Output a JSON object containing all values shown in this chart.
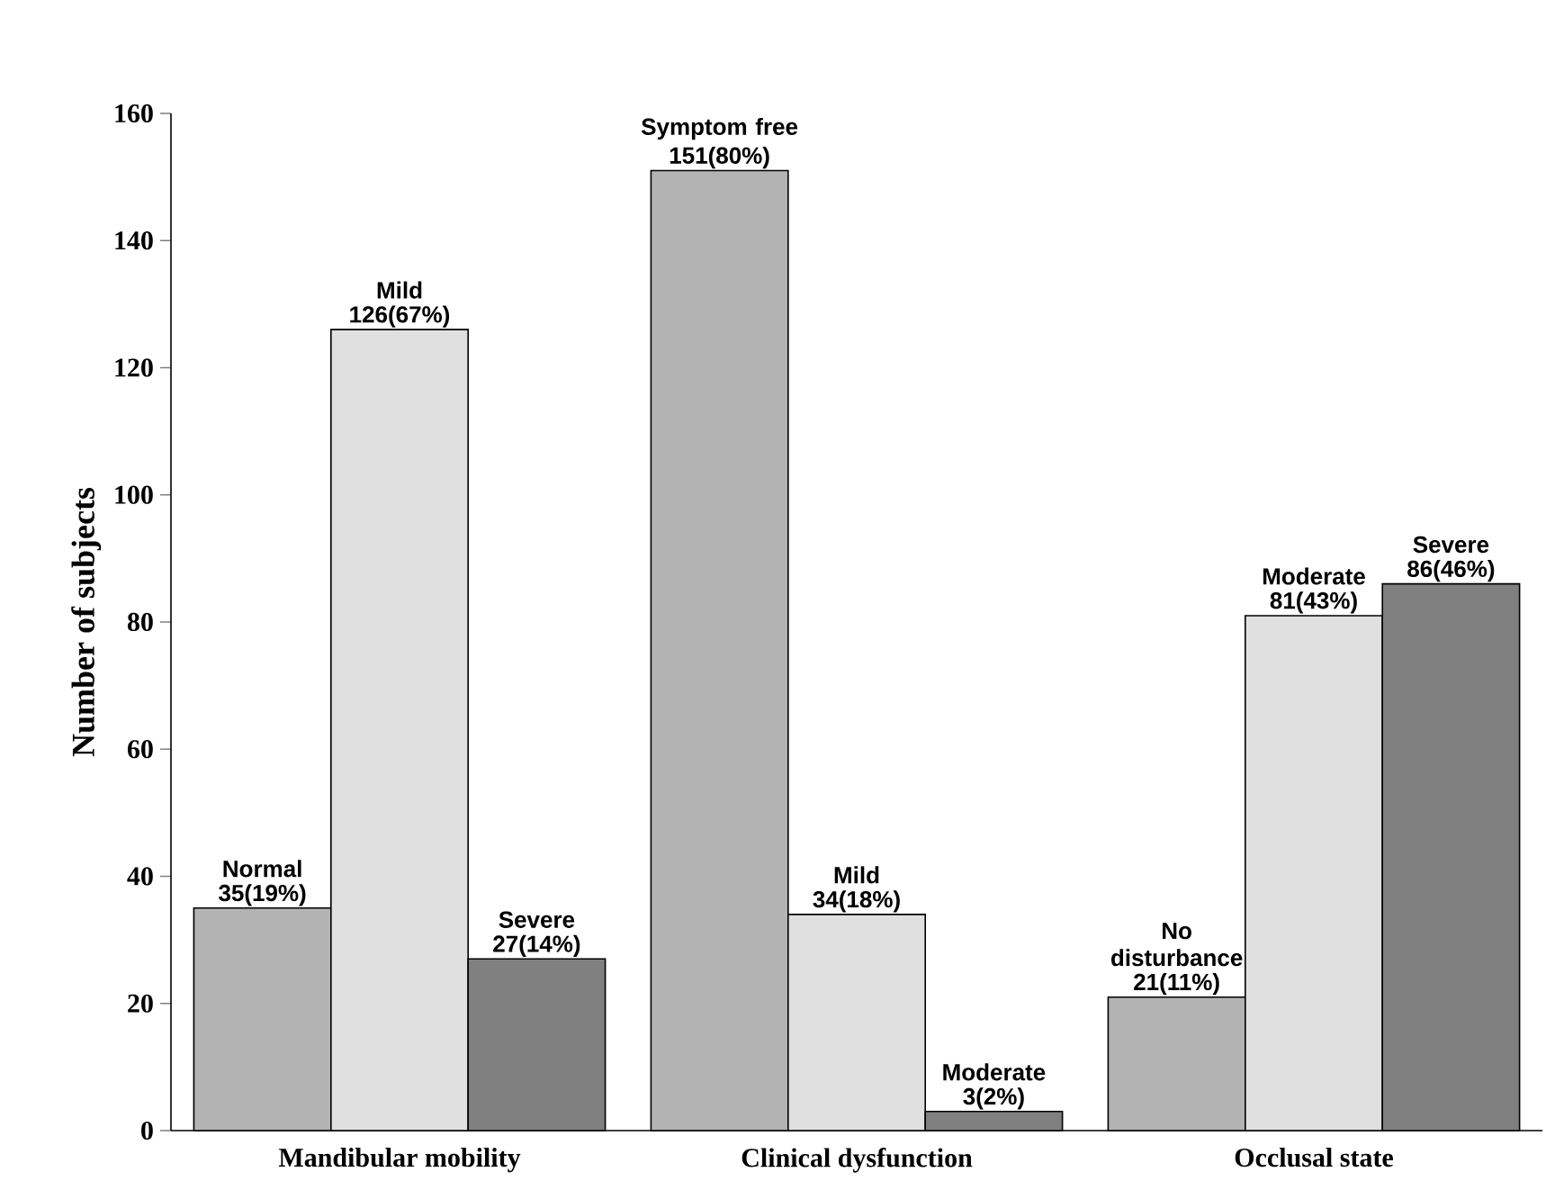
{
  "chart_data": {
    "type": "bar",
    "categories": [
      "Mandibular mobility",
      "Clinical dysfunction",
      "Occlusal state"
    ],
    "ylabel": "Number of subjects",
    "ylim": [
      0,
      160
    ],
    "yticks": [
      0,
      20,
      40,
      60,
      80,
      100,
      120,
      140,
      160
    ],
    "series": [
      {
        "color": "#b3b3b3",
        "values": [
          35,
          151,
          21
        ],
        "value_labels": [
          "35(19%)",
          "151(80%)",
          "21(11%)"
        ]
      },
      {
        "color": "#e0e0e0",
        "values": [
          126,
          34,
          81
        ],
        "value_labels": [
          "126(67%)",
          "34(18%)",
          "81(43%)"
        ]
      },
      {
        "color": "#808080",
        "values": [
          27,
          3,
          86
        ],
        "value_labels": [
          "27(14%)",
          "3(2%)",
          "86(46%)"
        ]
      }
    ],
    "annotations": [
      "Normal",
      "Mild",
      "Severe",
      "Symptom free",
      "Mild",
      "Moderate",
      "No disturbance",
      "Moderate",
      "Severe"
    ]
  }
}
